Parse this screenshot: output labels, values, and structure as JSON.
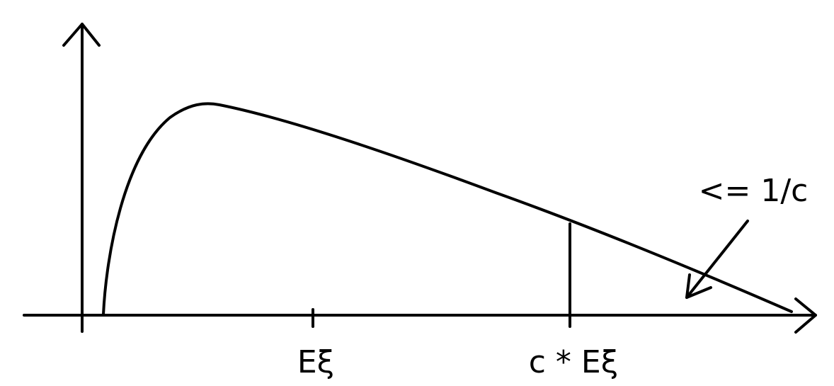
{
  "labels": {
    "mean_tick": "Eξ",
    "threshold_tick": "c * Eξ",
    "tail_annotation": "<= 1/c"
  },
  "colors": {
    "stroke": "#000000",
    "background": "#ffffff"
  }
}
